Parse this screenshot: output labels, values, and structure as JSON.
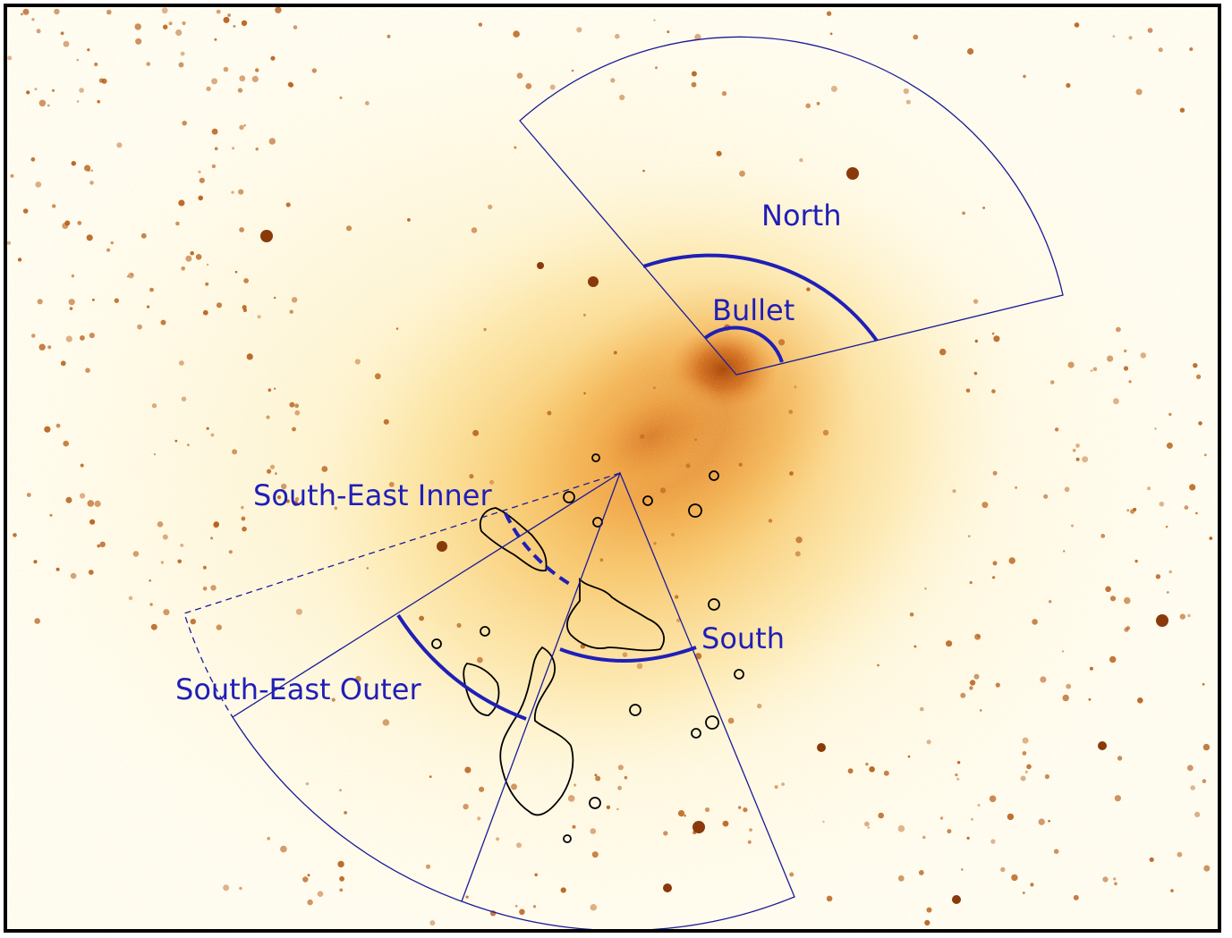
{
  "image": {
    "description_colors": {
      "background": "#fffdf3",
      "emission_faint": "#fde9a8",
      "emission_mid": "#f5a23c",
      "emission_core": "#b44d0e",
      "point_source": "#c0661b",
      "region_outline": "#1a1a9a",
      "front_arc": "#1f1fb8",
      "contour": "#000000"
    }
  },
  "labels": {
    "north": "North",
    "bullet": "Bullet",
    "south_east_inner": "South-East Inner",
    "south": "South",
    "south_east_outer": "South-East Outer"
  }
}
